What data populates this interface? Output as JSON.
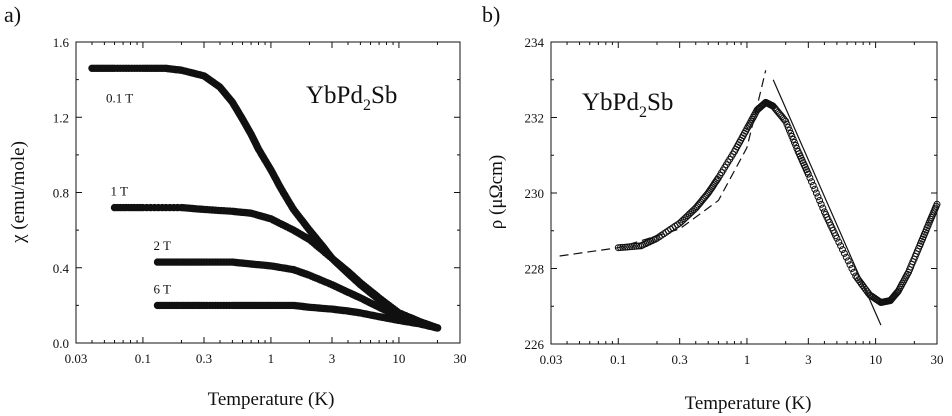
{
  "chart_data": [
    {
      "type": "scatter",
      "panel_label": "a)",
      "annotation": {
        "main": "YbPd",
        "sub": "2",
        "tail": "Sb"
      },
      "xlabel": "Temperature (K)",
      "ylabel": "χ (emu/mole)",
      "xscale": "log",
      "xlim": [
        0.03,
        30
      ],
      "ylim": [
        0.0,
        1.6
      ],
      "xticks": [
        0.03,
        0.1,
        0.3,
        1,
        3,
        10,
        30
      ],
      "xtick_labels": [
        "0.03",
        "0.1",
        "0.3",
        "1",
        "3",
        "10",
        "30"
      ],
      "yticks": [
        0.0,
        0.4,
        0.8,
        1.2,
        1.6
      ],
      "ytick_labels": [
        "0.0",
        "0.4",
        "0.8",
        "1.2",
        "1.6"
      ],
      "grid": false,
      "series": [
        {
          "name": "0.1 T",
          "x": [
            0.04,
            0.06,
            0.1,
            0.15,
            0.2,
            0.3,
            0.4,
            0.5,
            0.6,
            0.7,
            0.8,
            1.0,
            1.2,
            1.5,
            2.0,
            2.5,
            3.0,
            4.0,
            5.0,
            7.0,
            10.0,
            15.0,
            20.0
          ],
          "y": [
            1.46,
            1.46,
            1.46,
            1.46,
            1.45,
            1.42,
            1.36,
            1.28,
            1.19,
            1.11,
            1.03,
            0.92,
            0.82,
            0.71,
            0.6,
            0.52,
            0.45,
            0.37,
            0.31,
            0.23,
            0.16,
            0.11,
            0.08
          ]
        },
        {
          "name": "1 T",
          "x": [
            0.06,
            0.1,
            0.2,
            0.3,
            0.5,
            0.7,
            1.0,
            1.5,
            2.0,
            3.0,
            4.0,
            5.0,
            7.0,
            10.0,
            15.0,
            20.0
          ],
          "y": [
            0.72,
            0.72,
            0.72,
            0.71,
            0.7,
            0.69,
            0.66,
            0.6,
            0.55,
            0.45,
            0.38,
            0.32,
            0.24,
            0.16,
            0.11,
            0.08
          ]
        },
        {
          "name": "2 T",
          "x": [
            0.13,
            0.2,
            0.3,
            0.5,
            0.7,
            1.0,
            1.5,
            2.0,
            3.0,
            4.0,
            5.0,
            7.0,
            10.0,
            15.0,
            20.0
          ],
          "y": [
            0.43,
            0.43,
            0.43,
            0.43,
            0.42,
            0.41,
            0.39,
            0.36,
            0.31,
            0.27,
            0.24,
            0.19,
            0.14,
            0.1,
            0.08
          ]
        },
        {
          "name": "6 T",
          "x": [
            0.13,
            0.2,
            0.3,
            0.5,
            0.7,
            1.0,
            1.5,
            2.0,
            3.0,
            4.0,
            5.0,
            7.0,
            10.0,
            15.0,
            20.0
          ],
          "y": [
            0.2,
            0.2,
            0.2,
            0.2,
            0.2,
            0.2,
            0.2,
            0.19,
            0.18,
            0.17,
            0.16,
            0.14,
            0.12,
            0.1,
            0.08
          ]
        }
      ]
    },
    {
      "type": "scatter",
      "panel_label": "b)",
      "annotation": {
        "main": "YbPd",
        "sub": "2",
        "tail": "Sb"
      },
      "xlabel": "Temperature (K)",
      "ylabel": "ρ (μΩcm)",
      "xscale": "log",
      "xlim": [
        0.03,
        30
      ],
      "ylim": [
        226,
        234
      ],
      "xticks": [
        0.03,
        0.1,
        0.3,
        1,
        3,
        10,
        30
      ],
      "xtick_labels": [
        "0.03",
        "0.1",
        "0.3",
        "1",
        "3",
        "10",
        "30"
      ],
      "yticks": [
        226,
        228,
        230,
        232,
        234
      ],
      "ytick_labels": [
        "226",
        "228",
        "230",
        "232",
        "234"
      ],
      "grid": false,
      "series": [
        {
          "name": "",
          "x": [
            0.1,
            0.15,
            0.2,
            0.3,
            0.4,
            0.5,
            0.6,
            0.8,
            1.0,
            1.2,
            1.4,
            1.6,
            2.0,
            2.5,
            3.0,
            4.0,
            5.0,
            7.0,
            9.0,
            11.0,
            13.0,
            15.0,
            18.0,
            22.0,
            26.0,
            30.0
          ],
          "y": [
            228.55,
            228.6,
            228.8,
            229.2,
            229.6,
            230.0,
            230.4,
            231.1,
            231.7,
            232.2,
            232.4,
            232.3,
            231.9,
            231.1,
            230.5,
            229.5,
            228.8,
            227.8,
            227.3,
            227.1,
            227.15,
            227.4,
            227.9,
            228.6,
            229.2,
            229.7
          ]
        }
      ],
      "fit_lines": [
        {
          "style": "dashed",
          "x": [
            0.035,
            0.1,
            0.3,
            0.6,
            1.0,
            1.2,
            1.4
          ],
          "y": [
            228.33,
            228.55,
            229.05,
            229.8,
            231.2,
            232.3,
            233.25
          ]
        },
        {
          "style": "solid",
          "x": [
            1.6,
            11.0
          ],
          "y": [
            233.0,
            226.5
          ]
        }
      ]
    }
  ]
}
